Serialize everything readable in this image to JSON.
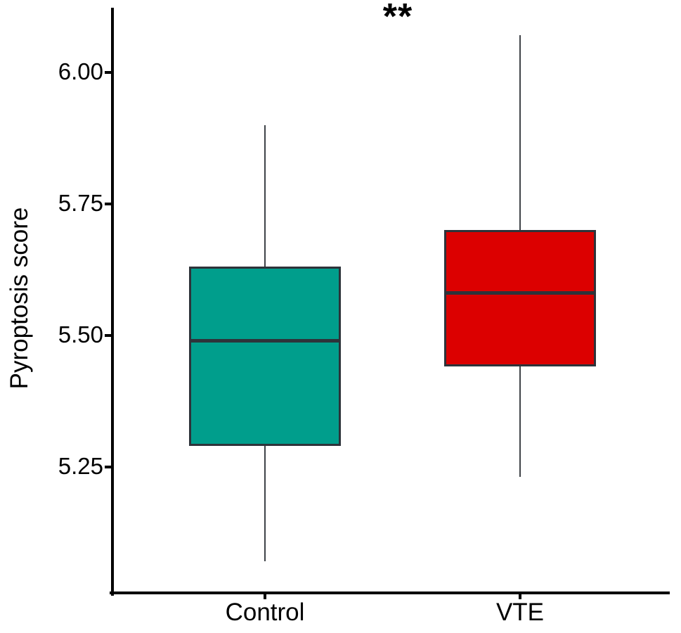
{
  "chart_data": {
    "type": "box",
    "title": "",
    "xlabel": "",
    "ylabel": "Pyroptosis score",
    "categories": [
      "Control",
      "VTE"
    ],
    "ytick_labels": [
      "6.00",
      "5.75",
      "5.50",
      "5.25"
    ],
    "ytick_values": [
      6.0,
      5.75,
      5.5,
      5.25
    ],
    "ylim": [
      5.01,
      6.12
    ],
    "grid": false,
    "legend": "none",
    "annotation": {
      "text": "**"
    },
    "series": [
      {
        "name": "Control",
        "fill_color": "#009E8C",
        "whisker_low": 5.07,
        "q1": 5.29,
        "median": 5.49,
        "q3": 5.63,
        "whisker_high": 5.9
      },
      {
        "name": "VTE",
        "fill_color": "#DC0000",
        "whisker_low": 5.23,
        "q1": 5.44,
        "median": 5.58,
        "q3": 5.7,
        "whisker_high": 6.07
      }
    ],
    "colors": {
      "axis": "#000000",
      "box_border": "#2E333A",
      "median": "#2E333A",
      "whisker": "#3F4348",
      "background": "#FFFFFF",
      "text": "#000000"
    }
  }
}
